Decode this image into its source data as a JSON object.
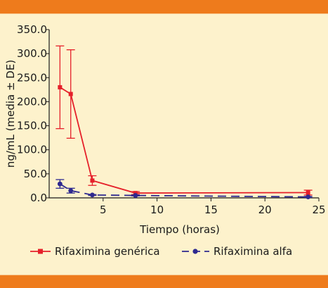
{
  "colors": {
    "background": "#fdf2cc",
    "band": "#ee7b1c",
    "axis": "#1a1a1a",
    "series_generic": "#e5202a",
    "series_alfa": "#2e2a8f"
  },
  "chart_data": {
    "type": "line",
    "xlabel": "Tiempo (horas)",
    "ylabel": "ng/mL (media ± DE)",
    "xlim": [
      0,
      25
    ],
    "ylim": [
      0,
      350
    ],
    "xticks": [
      "5",
      "10",
      "15",
      "20",
      "25"
    ],
    "yticks": [
      "0.0",
      "50.0",
      "100.0",
      "150.0",
      "200.0",
      "250.0",
      "300.0",
      "350.0"
    ],
    "grid": false,
    "legend_position": "bottom",
    "series": [
      {
        "name": "Rifaximina genérica",
        "marker": "square",
        "line_style": "solid",
        "x": [
          1,
          2,
          4,
          8,
          24
        ],
        "y": [
          230,
          216,
          36,
          10,
          11
        ],
        "err": [
          86,
          92,
          10,
          3,
          5
        ]
      },
      {
        "name": "Rifaximina alfa",
        "marker": "circle",
        "line_style": "dashed",
        "x": [
          1,
          2,
          4,
          8,
          24
        ],
        "y": [
          29,
          15,
          6,
          5,
          2
        ],
        "err": [
          9,
          5,
          1,
          1,
          1
        ]
      }
    ]
  }
}
